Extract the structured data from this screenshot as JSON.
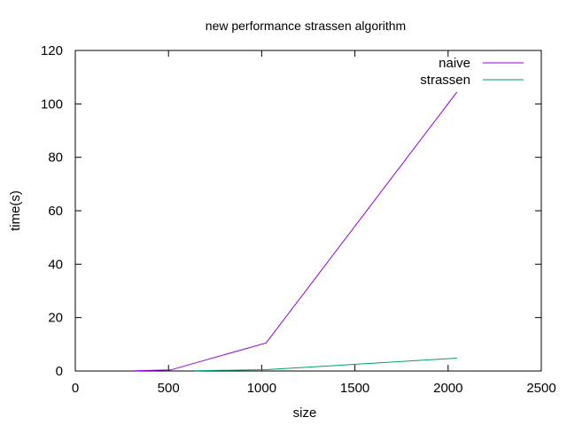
{
  "chart_data": {
    "type": "line",
    "title": "new performance strassen algorithm",
    "xlabel": "size",
    "ylabel": "time(s)",
    "xlim": [
      0,
      2500
    ],
    "ylim": [
      0,
      120
    ],
    "xticks": [
      0,
      500,
      1000,
      1500,
      2000,
      2500
    ],
    "yticks": [
      0,
      20,
      40,
      60,
      80,
      100,
      120
    ],
    "grid": false,
    "legend_position": "top-right",
    "series": [
      {
        "name": "naive",
        "color": "#9400d3",
        "x": [
          320,
          512,
          1024,
          2048
        ],
        "y": [
          0.1,
          0.4,
          10.5,
          104.5
        ]
      },
      {
        "name": "strassen",
        "color": "#009e73",
        "x": [
          640,
          1024,
          2048
        ],
        "y": [
          0.1,
          0.5,
          4.8
        ]
      }
    ]
  }
}
